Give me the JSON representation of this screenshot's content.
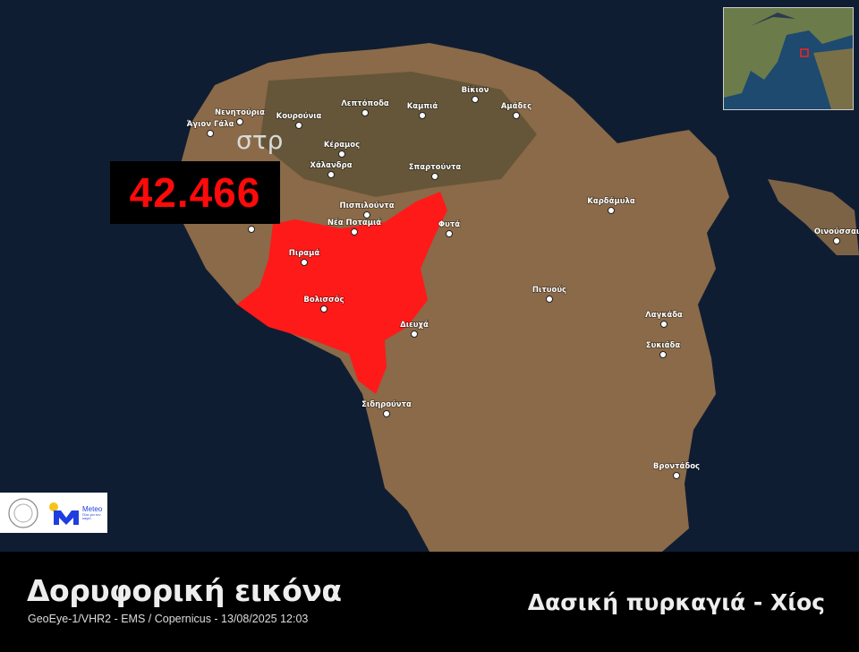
{
  "map": {
    "burned_area_value": "42.466",
    "burned_area_unit": "στρ",
    "burn_color": "#ff1a1a",
    "sea_color": "#0f1d33",
    "land_color": "#8a6a48",
    "places": [
      "Άγιον Γάλα",
      "Νενητούρια",
      "Κουρούνια",
      "Λεπτόποδα",
      "Καμπιά",
      "Βίκιον",
      "Αμάδες",
      "Κέραμος",
      "Χάλανδρα",
      "Σπαρτούντα",
      "Πισπιλούντα",
      "Νέα Ποταμιά",
      "Φυτά",
      "Καρδάμυλα",
      "Οινούσσαι",
      "Πιραμά",
      "Βολισσός",
      "Διευχά",
      "Πιτυούς",
      "Λαγκάδα",
      "Συκιάδα",
      "Σιδηρούντα",
      "Βροντάδος"
    ]
  },
  "logos": {
    "meteo_name": "Meteo",
    "meteo_tagline": "Όλα για τον καιρό"
  },
  "footer": {
    "title": "Δορυφορική εικόνα",
    "subtitle": "GeoEye-1/VHR2 - EMS / Copernicus - 13/08/2025 12:03",
    "event": "Δασική πυρκαγιά - Χίος"
  }
}
